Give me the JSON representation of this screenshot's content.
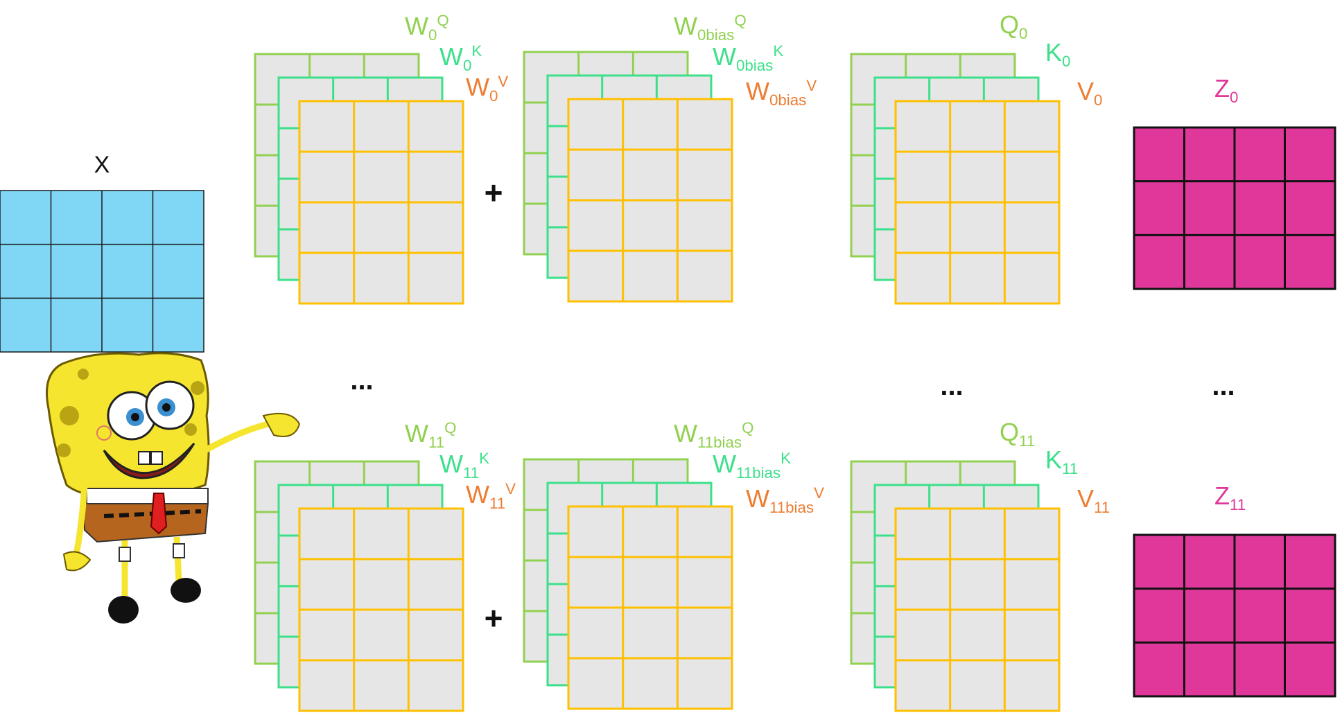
{
  "input": {
    "label": "X",
    "rows": 3,
    "cols": 4,
    "fill": "#7fd6f5",
    "stroke": "#1a1a1a"
  },
  "character": {
    "name": "spongebob-figure"
  },
  "colors": {
    "q_stroke": "#92d050",
    "k_stroke": "#3ce08a",
    "v_stroke": "#ffc000",
    "q_label": "#92d050",
    "k_label": "#3ce08a",
    "v_label": "#ed7d31",
    "z_label": "#e0389a",
    "matrix_fill": "#e6e6e6",
    "z_fill": "#e0389a",
    "z_stroke": "#111111"
  },
  "heads": [
    {
      "id": "head-0",
      "weights": {
        "base": "W",
        "sub": "0",
        "q_sup": "Q",
        "k_sup": "K",
        "v_sup": "V"
      },
      "bias": {
        "base": "W",
        "sub": "0bias",
        "q_sup": "Q",
        "k_sup": "K",
        "v_sup": "V"
      },
      "qkv": {
        "q_base": "Q",
        "k_base": "K",
        "v_base": "V",
        "sub": "0"
      },
      "z": {
        "base": "Z",
        "sub": "0"
      },
      "plus": "+"
    },
    {
      "id": "head-11",
      "weights": {
        "base": "W",
        "sub": "11",
        "q_sup": "Q",
        "k_sup": "K",
        "v_sup": "V"
      },
      "bias": {
        "base": "W",
        "sub": "11bias",
        "q_sup": "Q",
        "k_sup": "K",
        "v_sup": "V"
      },
      "qkv": {
        "q_base": "Q",
        "k_base": "K",
        "v_base": "V",
        "sub": "11"
      },
      "z": {
        "base": "Z",
        "sub": "11"
      },
      "plus": "+"
    }
  ],
  "ellipsis": "..."
}
